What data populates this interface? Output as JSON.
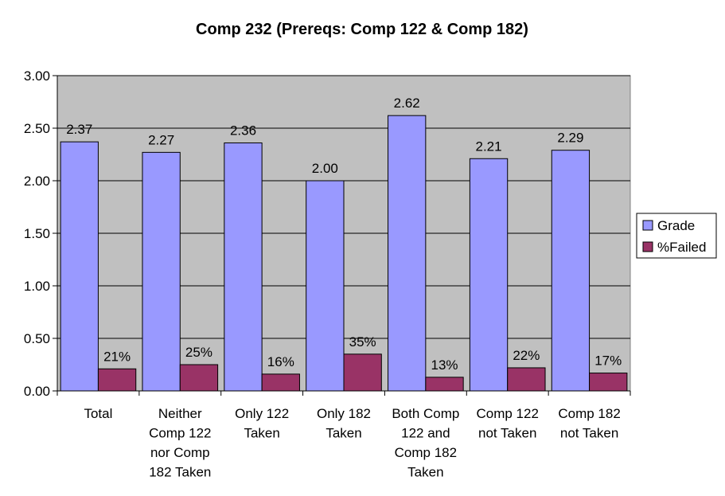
{
  "chart_data": {
    "type": "bar",
    "title": "Comp 232 (Prereqs: Comp 122 & Comp 182)",
    "xlabel": "",
    "ylabel": "",
    "ylim": [
      0,
      3
    ],
    "y_ticks": [
      "0.00",
      "0.50",
      "1.00",
      "1.50",
      "2.00",
      "2.50",
      "3.00"
    ],
    "grid": true,
    "legend_position": "right",
    "categories": [
      [
        "Total"
      ],
      [
        "Neither",
        "Comp 122",
        "nor Comp",
        "182 Taken"
      ],
      [
        "Only 122",
        "Taken"
      ],
      [
        "Only 182",
        "Taken"
      ],
      [
        "Both Comp",
        "122 and",
        "Comp 182",
        "Taken"
      ],
      [
        "Comp 122",
        "not Taken"
      ],
      [
        "Comp 182",
        "not Taken"
      ]
    ],
    "series": [
      {
        "name": "Grade",
        "color": "#9999ff",
        "values": [
          2.37,
          2.27,
          2.36,
          2.0,
          2.62,
          2.21,
          2.29
        ],
        "labels": [
          "2.37",
          "2.27",
          "2.36",
          "2.00",
          "2.62",
          "2.21",
          "2.29"
        ]
      },
      {
        "name": "%Failed",
        "color": "#993366",
        "values": [
          0.21,
          0.25,
          0.16,
          0.35,
          0.13,
          0.22,
          0.17
        ],
        "labels": [
          "21%",
          "25%",
          "16%",
          "35%",
          "13%",
          "22%",
          "17%"
        ]
      }
    ]
  },
  "colors": {
    "plot_background": "#c0c0c0",
    "gridline": "#000000"
  }
}
